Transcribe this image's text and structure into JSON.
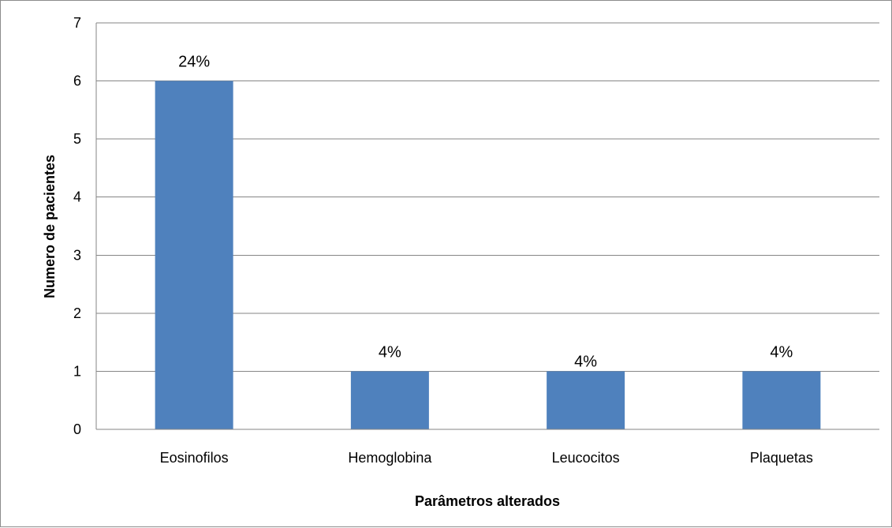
{
  "chart_data": {
    "type": "bar",
    "categories": [
      "Eosinofilos",
      "Hemoglobina",
      "Leucocitos",
      "Plaquetas"
    ],
    "values": [
      6,
      1,
      1,
      1
    ],
    "data_labels": [
      "24%",
      "4%",
      "4%",
      "4%"
    ],
    "xlabel": "Parâmetros alterados",
    "ylabel": "Numero de pacientes",
    "ylim": [
      0,
      7
    ],
    "yticks": [
      "0",
      "1",
      "2",
      "3",
      "4",
      "5",
      "6",
      "7"
    ],
    "grid": true,
    "legend": "none",
    "bar_color": "#4f81bd",
    "grid_color": "#868686"
  }
}
